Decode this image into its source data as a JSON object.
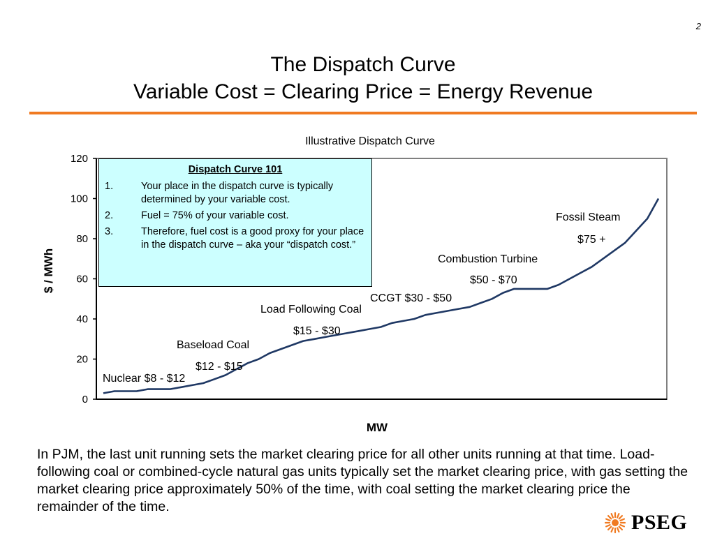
{
  "page_number": "2",
  "title_line1": "The Dispatch Curve",
  "title_line2": "Variable Cost = Clearing Price = Energy Revenue",
  "chart_data": {
    "type": "line",
    "title": "Illustrative Dispatch Curve",
    "xlabel": "MW",
    "ylabel": "$ / MWh",
    "ylim": [
      0,
      120
    ],
    "yticks": [
      "0",
      "20",
      "40",
      "60",
      "80",
      "100",
      "120"
    ],
    "grid": false,
    "series": [
      {
        "x": [
          0,
          2,
          4,
          6,
          8,
          10,
          12,
          14,
          16,
          18,
          20,
          22,
          24,
          26,
          28,
          30,
          32,
          34,
          36,
          38,
          40,
          42,
          44,
          46,
          48,
          50,
          52,
          54,
          56,
          58,
          60,
          62,
          64,
          66,
          68,
          70,
          72,
          74,
          76,
          78,
          80,
          82,
          84,
          86,
          88,
          90,
          92,
          94,
          96,
          98,
          100
        ],
        "values": [
          3,
          4,
          4,
          4,
          5,
          5,
          5,
          6,
          7,
          8,
          10,
          12,
          15,
          18,
          20,
          23,
          25,
          27,
          29,
          30,
          31,
          32,
          33,
          34,
          35,
          36,
          38,
          39,
          40,
          42,
          43,
          44,
          45,
          46,
          48,
          50,
          53,
          55,
          55,
          55,
          55,
          57,
          60,
          63,
          66,
          70,
          74,
          78,
          84,
          90,
          100
        ]
      }
    ],
    "annotations": [
      "Nuclear $8 - $12",
      "Baseload Coal",
      "$12 - $15",
      "Load Following Coal",
      "$15 - $30",
      "CCGT $30 - $50",
      "Combustion Turbine",
      "$50 - $70",
      "Fossil Steam",
      "$75 +"
    ]
  },
  "callout": {
    "title": "Dispatch Curve 101",
    "items": [
      {
        "num": "1.",
        "text": "Your place in the dispatch curve is typically determined by your variable cost."
      },
      {
        "num": "2.",
        "text": "Fuel = 75% of your variable cost."
      },
      {
        "num": "3.",
        "text": "Therefore, fuel cost is a good proxy for your place in the dispatch curve – aka your “dispatch cost.”"
      }
    ]
  },
  "body_text": "In PJM, the last unit running sets the market clearing price for all other units running at that time.  Load-following coal or combined-cycle natural gas units typically set the market clearing price, with gas setting the market clearing price approximately 50% of the time, with coal setting the market clearing price the remainder of the time.",
  "logo_text": "PSEG",
  "colors": {
    "accent_rule": "#f07a21",
    "curve": "#1f3864",
    "callout_bg": "#ccffff",
    "logo_sun": "#f07a21"
  }
}
